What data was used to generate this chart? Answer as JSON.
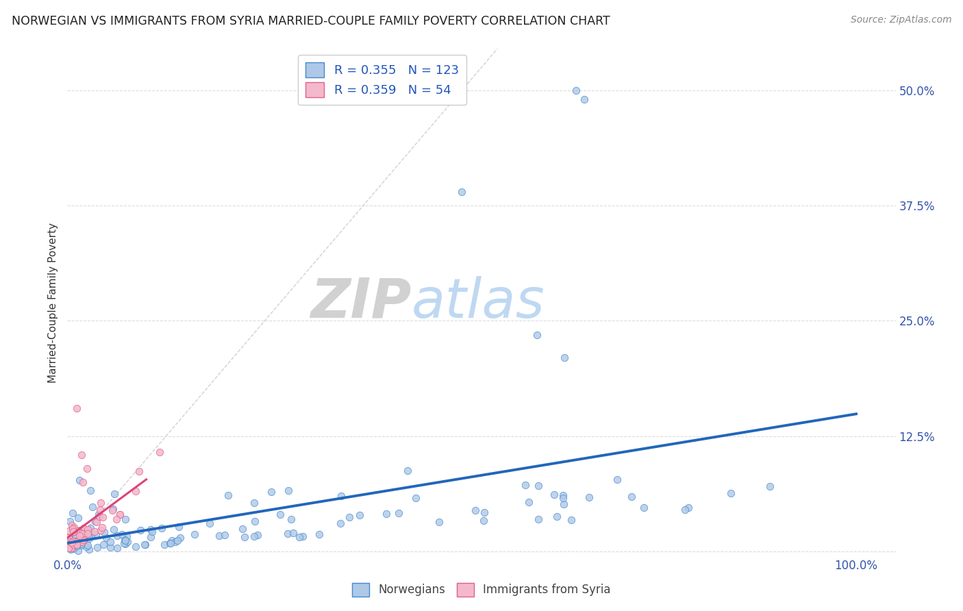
{
  "title": "NORWEGIAN VS IMMIGRANTS FROM SYRIA MARRIED-COUPLE FAMILY POVERTY CORRELATION CHART",
  "source": "Source: ZipAtlas.com",
  "ylabel": "Married-Couple Family Poverty",
  "watermark_zip": "ZIP",
  "watermark_atlas": "atlas",
  "norwegians_R": 0.355,
  "norwegians_N": 123,
  "syria_R": 0.359,
  "syria_N": 54,
  "blue_fill": "#aec8e8",
  "blue_edge": "#4488cc",
  "pink_fill": "#f4b8cc",
  "pink_edge": "#e06088",
  "blue_line": "#2266bb",
  "pink_line": "#dd4477",
  "diag_color": "#cccccc",
  "grid_color": "#cccccc",
  "xlim": [
    0.0,
    1.05
  ],
  "ylim": [
    -0.005,
    0.545
  ],
  "x_ticks": [
    0.0,
    0.25,
    0.5,
    0.75,
    1.0
  ],
  "x_tick_labels": [
    "0.0%",
    "",
    "",
    "",
    "100.0%"
  ],
  "y_ticks": [
    0.0,
    0.125,
    0.25,
    0.375,
    0.5
  ],
  "y_tick_labels": [
    "",
    "12.5%",
    "25.0%",
    "37.5%",
    "50.0%"
  ],
  "background_color": "#ffffff",
  "nor_seed": 42,
  "syr_seed": 99
}
